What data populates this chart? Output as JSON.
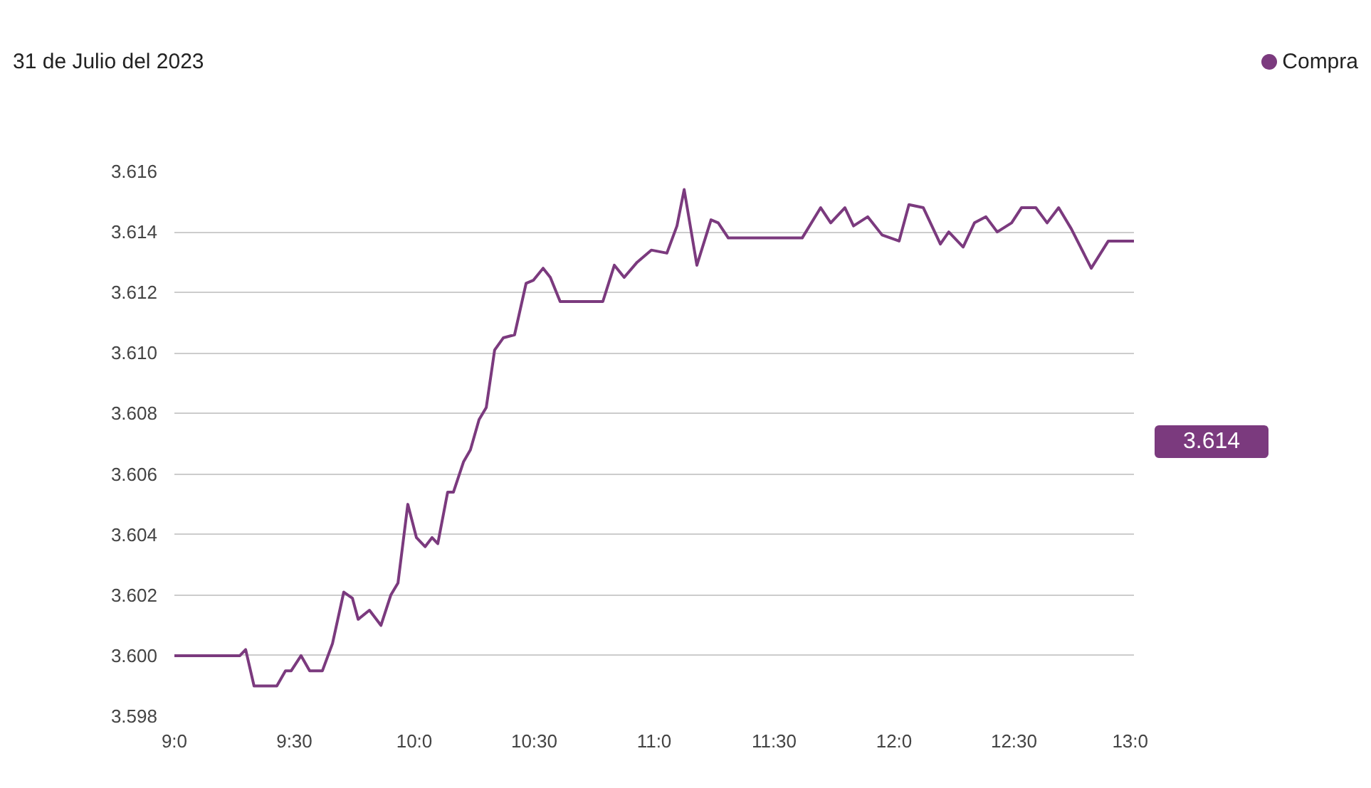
{
  "chart_data": {
    "type": "line",
    "title": "31 de Julio del 2023",
    "legend": "top right",
    "grid": "y",
    "line_style": "solid",
    "marker": "none",
    "annotations": [
      "3.614"
    ],
    "x": [
      9.0,
      9.273,
      9.297,
      9.332,
      9.374,
      9.427,
      9.463,
      9.487,
      9.528,
      9.564,
      9.617,
      9.659,
      9.706,
      9.742,
      9.766,
      9.813,
      9.861,
      9.902,
      9.932,
      9.973,
      10.009,
      10.045,
      10.074,
      10.098,
      10.139,
      10.163,
      10.205,
      10.234,
      10.27,
      10.3,
      10.335,
      10.371,
      10.418,
      10.466,
      10.496,
      10.537,
      10.567,
      10.608,
      10.65,
      10.786,
      10.834,
      10.875,
      10.929,
      10.988,
      11.053,
      11.095,
      11.125,
      11.178,
      11.237,
      11.267,
      11.309,
      11.617,
      11.694,
      11.736,
      11.795,
      11.831,
      11.89,
      11.95,
      12.021,
      12.062,
      12.122,
      12.193,
      12.228,
      12.288,
      12.335,
      12.383,
      12.43,
      12.49,
      12.531,
      12.591,
      12.638,
      12.686,
      12.739,
      12.822,
      12.893,
      13.0
    ],
    "series": [
      {
        "name": "Compra",
        "color": "#7b3a7e",
        "values": [
          3.6,
          3.6,
          3.6002,
          3.599,
          3.599,
          3.599,
          3.5995,
          3.5995,
          3.6,
          3.5995,
          3.5995,
          3.6004,
          3.6021,
          3.6019,
          3.6012,
          3.6015,
          3.601,
          3.602,
          3.6024,
          3.605,
          3.6039,
          3.6036,
          3.6039,
          3.6037,
          3.6054,
          3.6054,
          3.6064,
          3.6068,
          3.6078,
          3.6082,
          3.6101,
          3.6105,
          3.6106,
          3.6123,
          3.6124,
          3.6128,
          3.6125,
          3.6117,
          3.6117,
          3.6117,
          3.6129,
          3.6125,
          3.613,
          3.6134,
          3.6133,
          3.6142,
          3.6154,
          3.6129,
          3.6144,
          3.6143,
          3.6138,
          3.6138,
          3.6148,
          3.6143,
          3.6148,
          3.6142,
          3.6145,
          3.6139,
          3.6137,
          3.6149,
          3.6148,
          3.6136,
          3.614,
          3.6135,
          3.6143,
          3.6145,
          3.614,
          3.6143,
          3.6148,
          3.6148,
          3.6143,
          3.6148,
          3.6141,
          3.6128,
          3.6137,
          3.6137
        ]
      }
    ],
    "xlim": [
      9.0,
      13.0
    ],
    "ylim": [
      3.598,
      3.616
    ],
    "xticks": [
      {
        "value": 9.0,
        "label": "9:0"
      },
      {
        "value": 9.5,
        "label": "9:30"
      },
      {
        "value": 10.0,
        "label": "10:0"
      },
      {
        "value": 10.5,
        "label": "10:30"
      },
      {
        "value": 11.0,
        "label": "11:0"
      },
      {
        "value": 11.5,
        "label": "11:30"
      },
      {
        "value": 12.0,
        "label": "12:0"
      },
      {
        "value": 12.5,
        "label": "12:30"
      },
      {
        "value": 13.0,
        "label": "13:0"
      }
    ],
    "yticks": [
      3.598,
      {
        "value": 3.6,
        "label": "3.600"
      },
      3.602,
      3.604,
      3.606,
      3.608,
      {
        "value": 3.61,
        "label": "3.610"
      },
      3.612,
      3.614,
      3.616
    ]
  }
}
